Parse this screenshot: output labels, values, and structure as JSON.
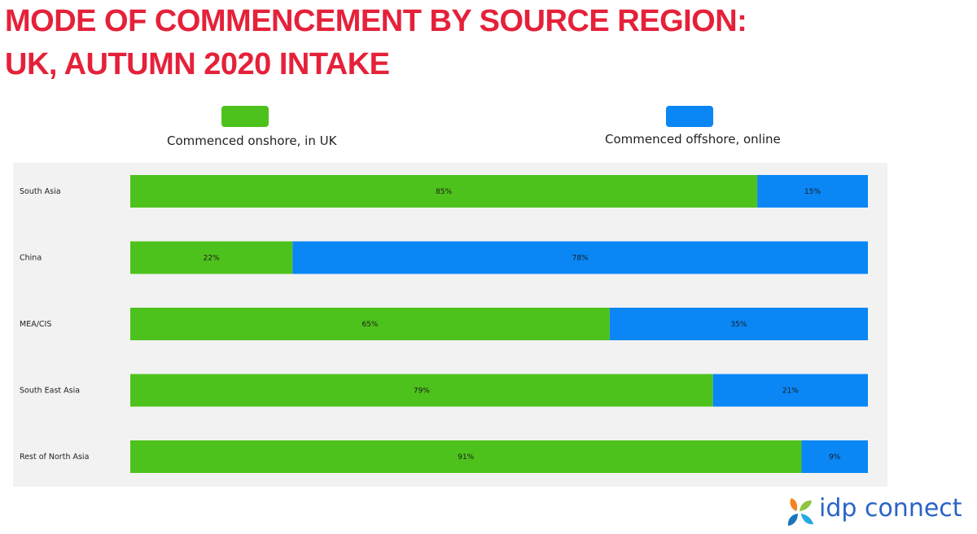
{
  "title_line1": "MODE OF COMMENCEMENT BY SOURCE REGION:",
  "title_line2": "UK, AUTUMN 2020 INTAKE",
  "logo_text": "idp connect",
  "colors": {
    "title": "#e5213a",
    "onshore": "#4ec21c",
    "offshore": "#0a86f5",
    "panel": "#f2f2f2",
    "logo_text": "#2a63c7"
  },
  "chart_data": {
    "type": "bar",
    "orientation": "horizontal",
    "stacked": true,
    "normalized_percent": true,
    "title": "MODE OF COMMENCEMENT BY SOURCE REGION: UK, AUTUMN 2020 INTAKE",
    "categories": [
      "South Asia",
      "China",
      "MEA/CIS",
      "South East Asia",
      "Rest of North Asia"
    ],
    "series": [
      {
        "name": "Commenced onshore, in UK",
        "color": "#4ec21c",
        "values": [
          85,
          22,
          65,
          79,
          91
        ],
        "labels": [
          "85%",
          "22%",
          "65%",
          "79%",
          "91%"
        ]
      },
      {
        "name": "Commenced offshore, online",
        "color": "#0a86f5",
        "values": [
          15,
          78,
          35,
          21,
          9
        ],
        "labels": [
          "15%",
          "78%",
          "35%",
          "21%",
          "9%"
        ]
      }
    ],
    "xlim": [
      0,
      100
    ],
    "grid": false,
    "legend_position": "top"
  }
}
